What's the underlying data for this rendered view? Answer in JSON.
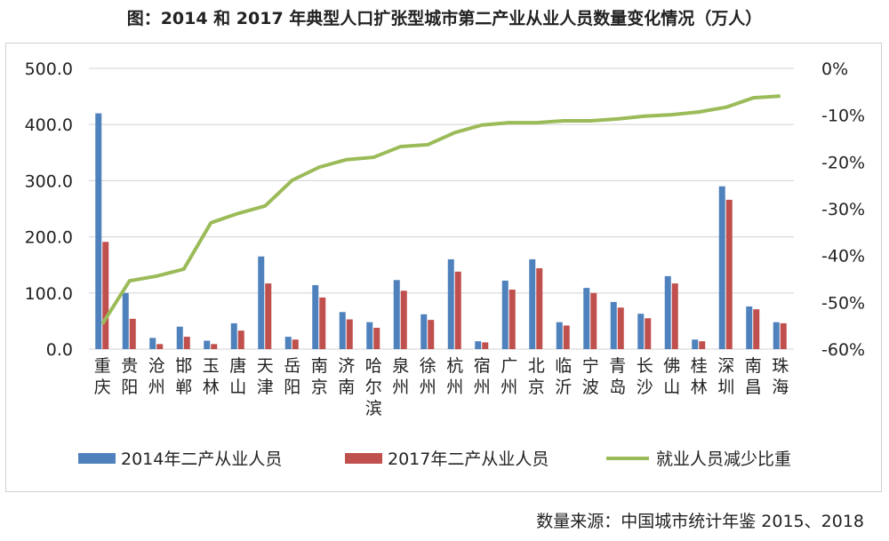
{
  "title": "图：2014 和 2017 年典型人口扩张型城市第二产业从业人员数量变化情况（万人）",
  "source": "数量来源：中国城市统计年鉴 2015、2018",
  "chart_data": {
    "type": "bar+line",
    "title": "图：2014 和 2017 年典型人口扩张型城市第二产业从业人员数量变化情况（万人）",
    "categories": [
      "重庆",
      "贵阳",
      "沧州",
      "邯郸",
      "玉林",
      "唐山",
      "天津",
      "岳阳",
      "南京",
      "济南",
      "哈尔滨",
      "泉州",
      "徐州",
      "杭州",
      "宿州",
      "广州",
      "北京",
      "临沂",
      "宁波",
      "青岛",
      "长沙",
      "佛山",
      "桂林",
      "深圳",
      "南昌",
      "珠海"
    ],
    "series": [
      {
        "name": "2014年二产从业人员",
        "type": "bar",
        "axis": "left",
        "color": "#4f81bd",
        "values": [
          420,
          100,
          20,
          40,
          15,
          46,
          165,
          22,
          114,
          66,
          48,
          123,
          62,
          160,
          14,
          122,
          160,
          48,
          109,
          84,
          63,
          130,
          17,
          290,
          76,
          48
        ]
      },
      {
        "name": "2017年二产从业人员",
        "type": "bar",
        "axis": "left",
        "color": "#c0504d",
        "values": [
          191,
          54,
          9,
          22,
          9,
          33,
          117,
          17,
          92,
          53,
          38,
          104,
          52,
          138,
          12,
          106,
          144,
          42,
          100,
          74,
          55,
          117,
          14,
          266,
          71,
          46
        ]
      },
      {
        "name": "就业人员减少比重",
        "type": "line",
        "axis": "right",
        "color": "#9bbb59",
        "values": [
          -54.6,
          -45.4,
          -44.4,
          -42.9,
          -33.0,
          -31.0,
          -29.4,
          -23.9,
          -21.1,
          -19.5,
          -19.0,
          -16.7,
          -16.3,
          -13.7,
          -12.1,
          -11.6,
          -11.6,
          -11.2,
          -11.2,
          -10.8,
          -10.2,
          -9.9,
          -9.3,
          -8.3,
          -6.3,
          -5.9
        ]
      }
    ],
    "left_axis": {
      "ylim": [
        0,
        500
      ],
      "ticks": [
        "0.0",
        "100.0",
        "200.0",
        "300.0",
        "400.0",
        "500.0"
      ]
    },
    "right_axis": {
      "ylim": [
        -60,
        0
      ],
      "ticks": [
        "-60%",
        "-50%",
        "-40%",
        "-30%",
        "-20%",
        "-10%",
        "0%"
      ]
    },
    "grid": true,
    "legend": "bottom"
  }
}
